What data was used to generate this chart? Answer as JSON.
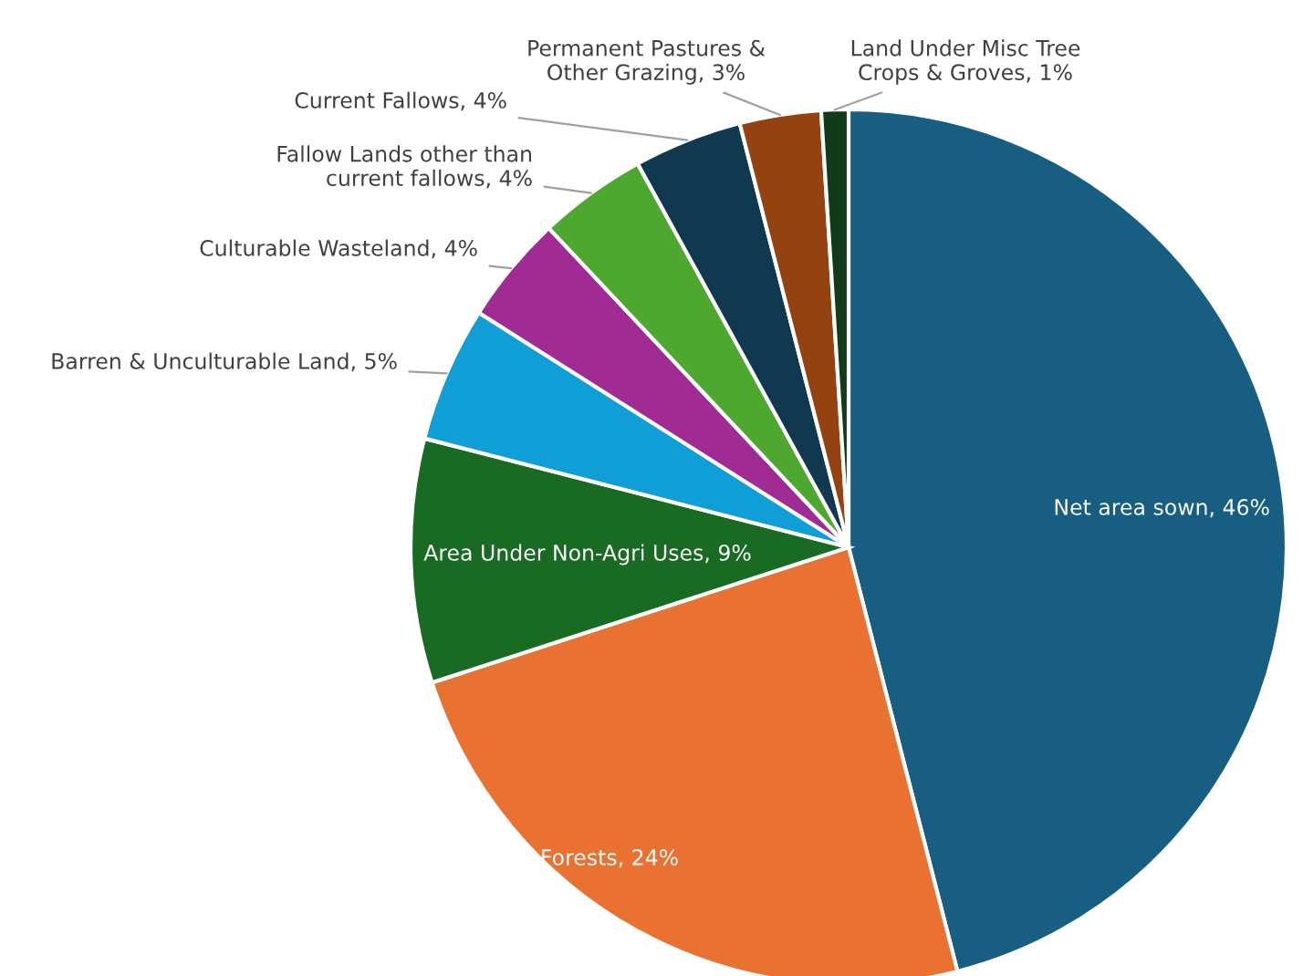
{
  "chart_data": {
    "type": "pie",
    "categories": [
      "Net area sown",
      "Forests",
      "Area Under Non-Agri Uses",
      "Barren & Unculturable Land",
      "Culturable Wasteland",
      "Fallow Lands other than\ncurrent fallows",
      "Current Fallows",
      "Permanent Pastures &\nOther Grazing",
      "Land Under Misc Tree\nCrops & Groves"
    ],
    "values": [
      46,
      24,
      9,
      5,
      4,
      4,
      4,
      3,
      1
    ],
    "value_labels": [
      "46%",
      "24%",
      "9%",
      "5%",
      "4%",
      "4%",
      "4%",
      "3%",
      "1%"
    ],
    "colors": [
      "#175e82",
      "#e97132",
      "#196b24",
      "#0f9ed5",
      "#a02b93",
      "#4ea72e",
      "#10384f",
      "#954211",
      "#113b1a"
    ]
  }
}
